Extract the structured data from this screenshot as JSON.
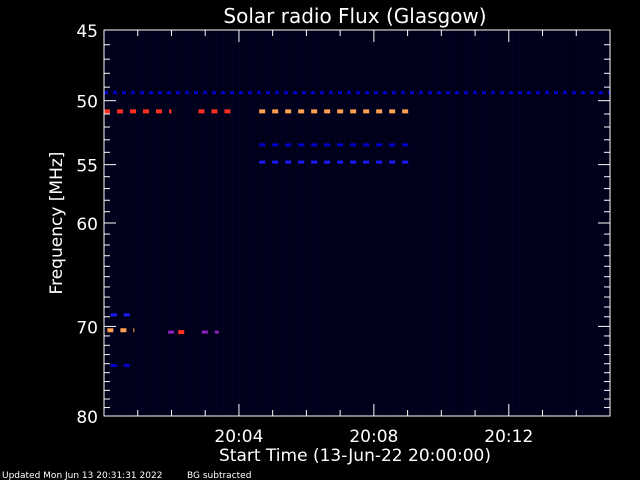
{
  "chart_data": {
    "type": "heatmap",
    "title": "Solar radio Flux (Glasgow)",
    "xlabel": "Start Time (13-Jun-22 20:00:00)",
    "ylabel": "Frequency [MHz]",
    "footer": {
      "updated": "Updated Mon Jun 13 20:31:31 2022",
      "note": "BG subtracted"
    },
    "x_range_minutes": [
      0,
      15
    ],
    "x_ticks": [
      {
        "minute": 4,
        "label": "20:04"
      },
      {
        "minute": 8,
        "label": "20:08"
      },
      {
        "minute": 12,
        "label": "20:12"
      }
    ],
    "y_scale": "log",
    "y_range_mhz": [
      45,
      80
    ],
    "y_ticks": [
      {
        "mhz": 45,
        "label": "45"
      },
      {
        "mhz": 50,
        "label": "50"
      },
      {
        "mhz": 55,
        "label": "55"
      },
      {
        "mhz": 60,
        "label": "60"
      },
      {
        "mhz": 70,
        "label": "70"
      },
      {
        "mhz": 80,
        "label": "80"
      }
    ],
    "colors": {
      "background": "#000000",
      "plot_background": "#00001a",
      "axis": "#ffffff",
      "weak": "#0000cc",
      "medium": "#1a1aff",
      "strong": "#ff3020",
      "peak": "#ffa050",
      "violet": "#9020c0"
    },
    "emission_bands": [
      {
        "mhz": 49.4,
        "t_start": 0.0,
        "t_end": 15.0,
        "level": "weak",
        "pattern": "dotted"
      },
      {
        "mhz": 50.8,
        "t_start": 0.0,
        "t_end": 2.0,
        "level": "strong",
        "pattern": "dashed"
      },
      {
        "mhz": 50.8,
        "t_start": 2.8,
        "t_end": 3.8,
        "level": "strong",
        "pattern": "dashed"
      },
      {
        "mhz": 50.8,
        "t_start": 4.6,
        "t_end": 9.2,
        "level": "peak",
        "pattern": "dashed"
      },
      {
        "mhz": 53.4,
        "t_start": 4.6,
        "t_end": 9.2,
        "level": "weak",
        "pattern": "dashed"
      },
      {
        "mhz": 54.8,
        "t_start": 4.6,
        "t_end": 9.2,
        "level": "medium",
        "pattern": "dashed"
      },
      {
        "mhz": 68.8,
        "t_start": 0.2,
        "t_end": 0.9,
        "level": "medium",
        "pattern": "dashed"
      },
      {
        "mhz": 70.4,
        "t_start": 0.1,
        "t_end": 0.9,
        "level": "peak",
        "pattern": "dashed"
      },
      {
        "mhz": 70.6,
        "t_start": 1.9,
        "t_end": 2.2,
        "level": "violet",
        "pattern": "dashed"
      },
      {
        "mhz": 70.6,
        "t_start": 2.2,
        "t_end": 2.4,
        "level": "strong",
        "pattern": "dashed"
      },
      {
        "mhz": 70.6,
        "t_start": 2.9,
        "t_end": 3.4,
        "level": "violet",
        "pattern": "dashed"
      },
      {
        "mhz": 74.2,
        "t_start": 0.2,
        "t_end": 0.9,
        "level": "weak",
        "pattern": "dashed"
      }
    ]
  }
}
